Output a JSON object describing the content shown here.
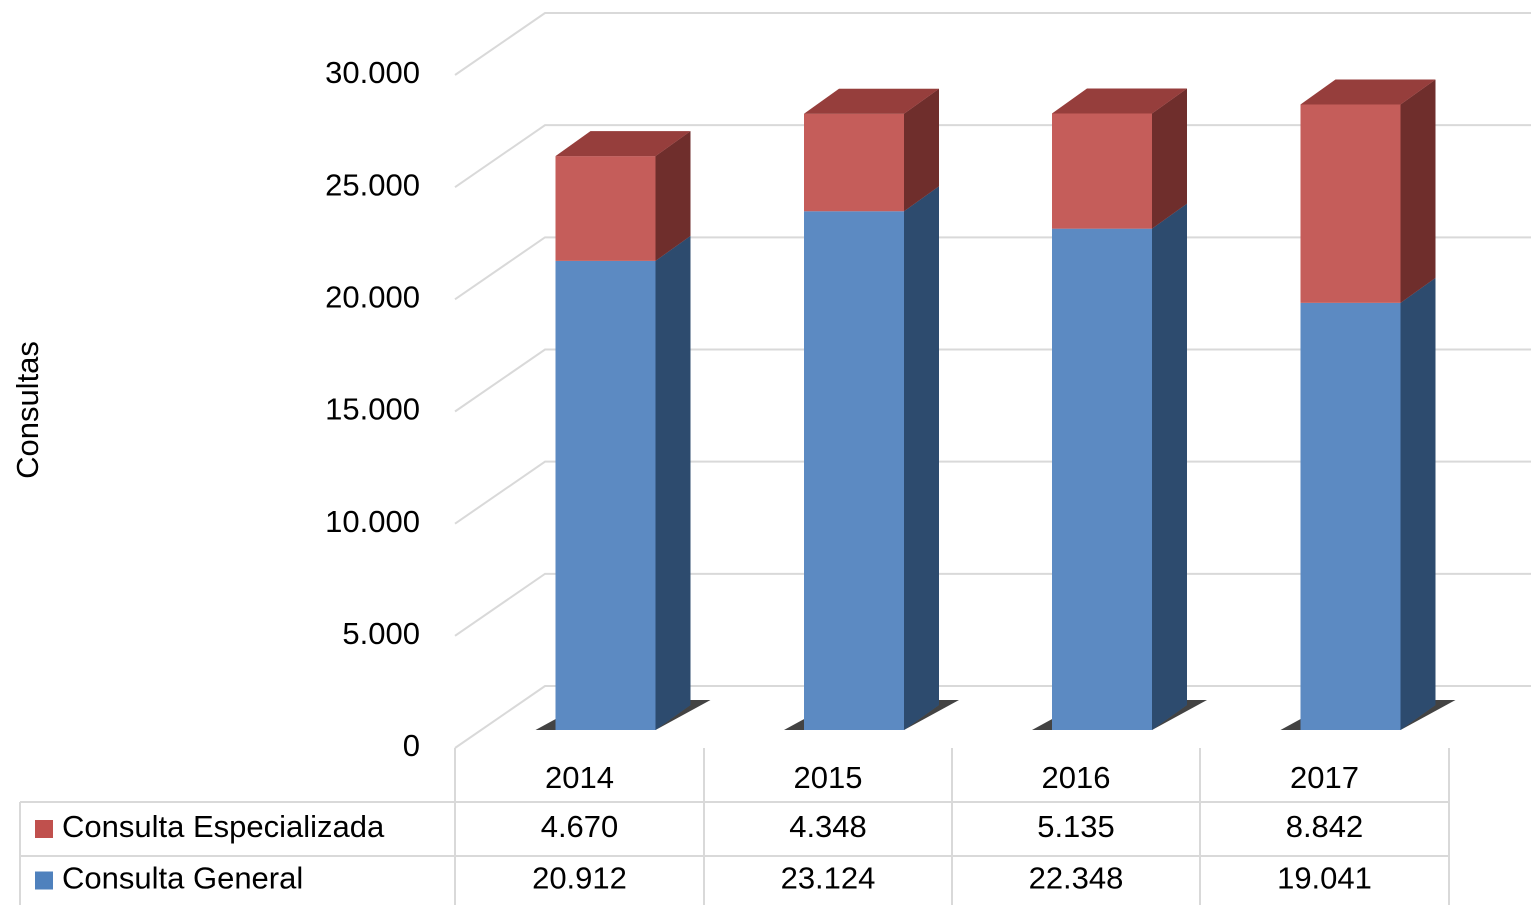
{
  "chart_data": {
    "type": "bar3d-stacked",
    "y_label": "Consultas",
    "categories": [
      "2014",
      "2015",
      "2016",
      "2017"
    ],
    "series": [
      {
        "name": "Consulta Especializada",
        "color": "#c0504d",
        "values": [
          4670,
          4348,
          5135,
          8842
        ],
        "value_labels": [
          "4.670",
          "4.348",
          "5.135",
          "8.842"
        ]
      },
      {
        "name": "Consulta General",
        "color": "#4f81bd",
        "values": [
          20912,
          23124,
          22348,
          19041
        ],
        "value_labels": [
          "20.912",
          "23.124",
          "22.348",
          "19.041"
        ]
      }
    ],
    "ylim": [
      0,
      30000
    ],
    "yticks": [
      {
        "value": 0,
        "label": "0"
      },
      {
        "value": 5000,
        "label": "5.000"
      },
      {
        "value": 10000,
        "label": "10.000"
      },
      {
        "value": 15000,
        "label": "15.000"
      },
      {
        "value": 20000,
        "label": "20.000"
      },
      {
        "value": 25000,
        "label": "25.000"
      },
      {
        "value": 30000,
        "label": "30.000"
      }
    ],
    "grid": true
  }
}
